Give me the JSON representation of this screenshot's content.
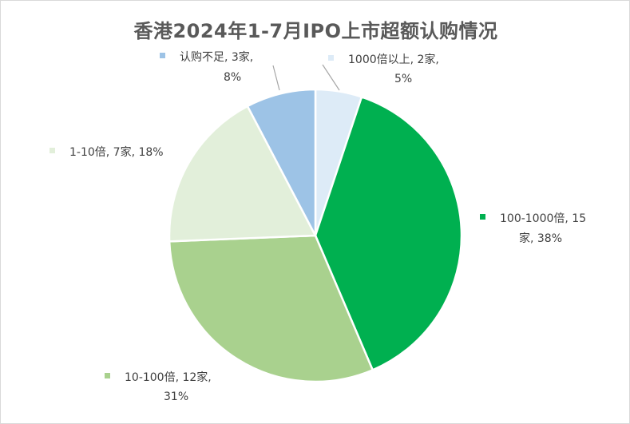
{
  "chart_data": {
    "type": "pie",
    "title": "香港2024年1-7月IPO上市超额认购情况",
    "slices": [
      {
        "name": "1000倍以上",
        "count_label": "2家",
        "value": 2,
        "percent_label": "5%",
        "color": "#DDEBF7"
      },
      {
        "name": "100-1000倍",
        "count_label": "15家",
        "value": 15,
        "percent_label": "38%",
        "color": "#00B050"
      },
      {
        "name": "10-100倍",
        "count_label": "12家",
        "value": 12,
        "percent_label": "31%",
        "color": "#A9D18E"
      },
      {
        "name": "1-10倍",
        "count_label": "7家",
        "value": 7,
        "percent_label": "18%",
        "color": "#E2EFDA"
      },
      {
        "name": "认购不足",
        "count_label": "3家",
        "value": 3,
        "percent_label": "8%",
        "color": "#9DC3E6"
      }
    ],
    "legend": "none",
    "data_labels": true
  }
}
